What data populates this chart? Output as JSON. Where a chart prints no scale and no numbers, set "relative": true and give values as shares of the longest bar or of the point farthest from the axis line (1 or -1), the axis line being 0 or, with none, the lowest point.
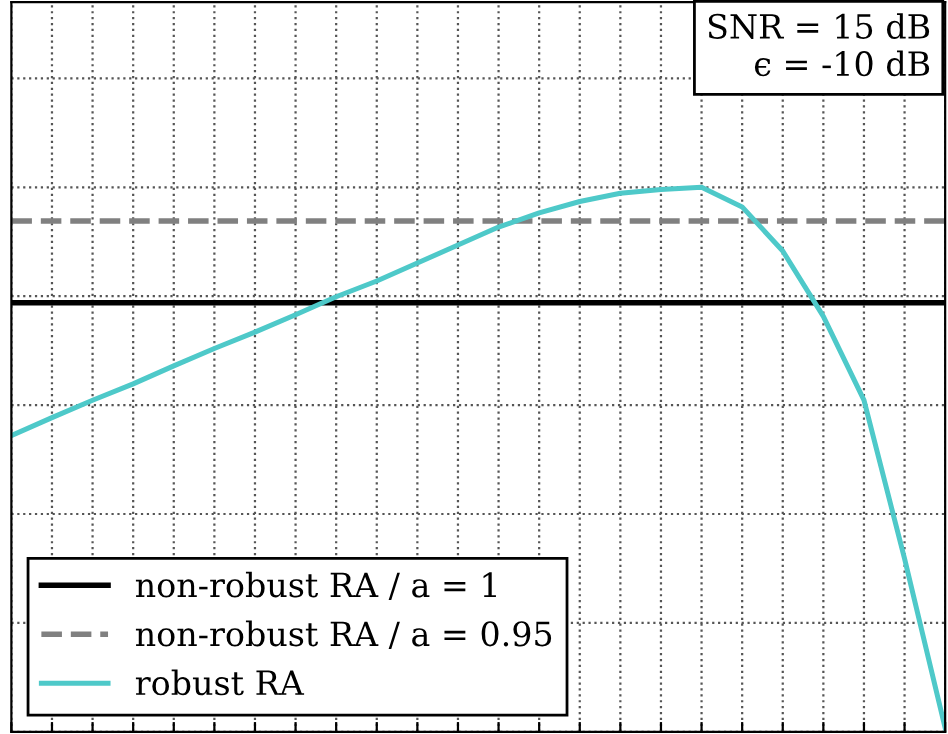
{
  "chart_data": {
    "type": "line",
    "relative": true,
    "categories": [
      null,
      null,
      null,
      null,
      null,
      null,
      null,
      null,
      null,
      null,
      null,
      null,
      null,
      null,
      null,
      null,
      null,
      null,
      null,
      null,
      null,
      null,
      null,
      null
    ],
    "series": [
      {
        "name": "non-robust RA / a = 1",
        "color": "#000000",
        "line_style": "solid",
        "values": [
          0.788,
          0.788,
          0.788,
          0.788,
          0.788,
          0.788,
          0.788,
          0.788,
          0.788,
          0.788,
          0.788,
          0.788,
          0.788,
          0.788,
          0.788,
          0.788,
          0.788,
          0.788,
          0.788,
          0.788,
          0.788,
          0.788,
          0.788,
          0.788
        ]
      },
      {
        "name": "non-robust RA / a = 0.95",
        "color": "#808080",
        "line_style": "dashed",
        "values": [
          0.938,
          0.938,
          0.938,
          0.938,
          0.938,
          0.938,
          0.938,
          0.938,
          0.938,
          0.938,
          0.938,
          0.938,
          0.938,
          0.938,
          0.938,
          0.938,
          0.938,
          0.938,
          0.938,
          0.938,
          0.938,
          0.938,
          0.938,
          0.938
        ]
      },
      {
        "name": "robust RA",
        "color": "#4ec9c9",
        "values": [
          0.544,
          0.577,
          0.609,
          0.639,
          0.672,
          0.704,
          0.734,
          0.766,
          0.799,
          0.828,
          0.861,
          0.894,
          0.927,
          0.953,
          0.974,
          0.989,
          0.996,
          1,
          0.964,
          0.883,
          0.763,
          0.609,
          0.318,
          0.007
        ]
      }
    ],
    "annotations": [
      "SNR = 15 dB",
      "ϵ = -10 dB"
    ],
    "grid": true,
    "legend": "bottom left",
    "line_style": "solid",
    "marker": "none"
  }
}
